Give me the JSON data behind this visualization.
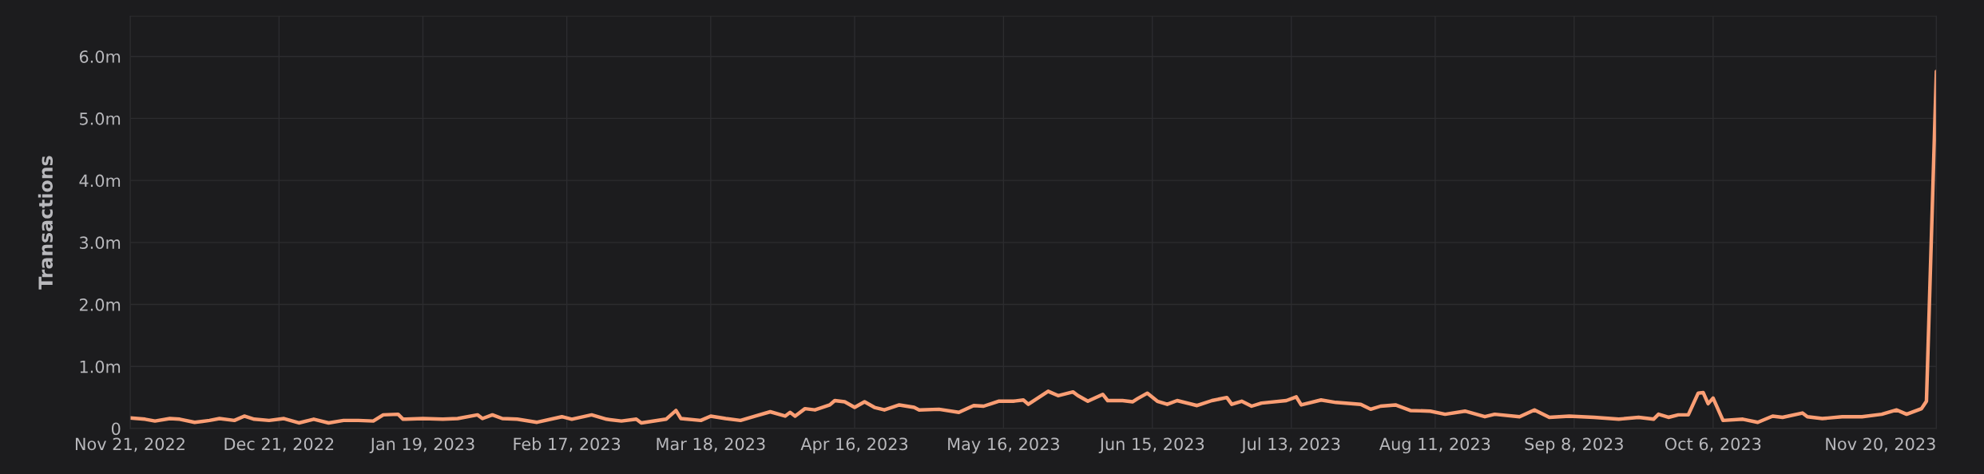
{
  "chart_data": {
    "type": "line",
    "ylabel": "Transactions",
    "xlim": [
      "2022-11-21",
      "2023-11-20"
    ],
    "xticks": [
      {
        "value": "2022-11-21",
        "label": "Nov 21, 2022"
      },
      {
        "value": "2022-12-21",
        "label": "Dec 21, 2022"
      },
      {
        "value": "2023-01-19",
        "label": "Jan 19, 2023"
      },
      {
        "value": "2023-02-17",
        "label": "Feb 17, 2023"
      },
      {
        "value": "2023-03-18",
        "label": "Mar 18, 2023"
      },
      {
        "value": "2023-04-16",
        "label": "Apr 16, 2023"
      },
      {
        "value": "2023-05-16",
        "label": "May 16, 2023"
      },
      {
        "value": "2023-06-15",
        "label": "Jun 15, 2023"
      },
      {
        "value": "2023-07-13",
        "label": "Jul 13, 2023"
      },
      {
        "value": "2023-08-11",
        "label": "Aug 11, 2023"
      },
      {
        "value": "2023-09-08",
        "label": "Sep 8, 2023"
      },
      {
        "value": "2023-10-06",
        "label": "Oct 6, 2023"
      },
      {
        "value": "2023-11-20",
        "label": "Nov 20, 2023"
      }
    ],
    "ylim": [
      0,
      6.65
    ],
    "yticks": [
      0,
      {
        "value": 1,
        "label": "1.0m"
      },
      {
        "value": 2,
        "label": "2.0m"
      },
      {
        "value": 3,
        "label": "3.0m"
      },
      {
        "value": 4,
        "label": "4.0m"
      },
      {
        "value": 5,
        "label": "5.0m"
      },
      {
        "value": 6,
        "label": "6.0m"
      }
    ],
    "grid": true,
    "marker": "none",
    "line_style": "solid",
    "x": [
      "2022-11-21",
      "2022-11-24",
      "2022-11-26",
      "2022-11-29",
      "2022-12-01",
      "2022-12-04",
      "2022-12-07",
      "2022-12-09",
      "2022-12-12",
      "2022-12-14",
      "2022-12-16",
      "2022-12-19",
      "2022-12-22",
      "2022-12-25",
      "2022-12-28",
      "2022-12-31",
      "2023-01-03",
      "2023-01-06",
      "2023-01-09",
      "2023-01-11",
      "2023-01-14",
      "2023-01-15",
      "2023-01-19",
      "2023-01-23",
      "2023-01-26",
      "2023-01-30",
      "2023-01-31",
      "2023-02-02",
      "2023-02-04",
      "2023-02-07",
      "2023-02-11",
      "2023-02-16",
      "2023-02-18",
      "2023-02-22",
      "2023-02-25",
      "2023-02-28",
      "2023-03-03",
      "2023-03-04",
      "2023-03-09",
      "2023-03-11",
      "2023-03-12",
      "2023-03-16",
      "2023-03-18",
      "2023-03-21",
      "2023-03-24",
      "2023-03-27",
      "2023-03-30",
      "2023-04-02",
      "2023-04-03",
      "2023-04-04",
      "2023-04-06",
      "2023-04-08",
      "2023-04-11",
      "2023-04-12",
      "2023-04-14",
      "2023-04-16",
      "2023-04-18",
      "2023-04-20",
      "2023-04-22",
      "2023-04-25",
      "2023-04-28",
      "2023-04-29",
      "2023-05-03",
      "2023-05-07",
      "2023-05-10",
      "2023-05-12",
      "2023-05-15",
      "2023-05-18",
      "2023-05-20",
      "2023-05-21",
      "2023-05-25",
      "2023-05-27",
      "2023-05-30",
      "2023-05-31",
      "2023-06-02",
      "2023-06-05",
      "2023-06-06",
      "2023-06-09",
      "2023-06-11",
      "2023-06-12",
      "2023-06-14",
      "2023-06-16",
      "2023-06-18",
      "2023-06-20",
      "2023-06-24",
      "2023-06-27",
      "2023-06-30",
      "2023-07-01",
      "2023-07-03",
      "2023-07-05",
      "2023-07-07",
      "2023-07-12",
      "2023-07-14",
      "2023-07-15",
      "2023-07-19",
      "2023-07-22",
      "2023-07-27",
      "2023-07-29",
      "2023-07-31",
      "2023-08-03",
      "2023-08-06",
      "2023-08-10",
      "2023-08-13",
      "2023-08-17",
      "2023-08-21",
      "2023-08-23",
      "2023-08-28",
      "2023-08-31",
      "2023-09-03",
      "2023-09-07",
      "2023-09-12",
      "2023-09-17",
      "2023-09-21",
      "2023-09-24",
      "2023-09-25",
      "2023-09-27",
      "2023-09-29",
      "2023-10-01",
      "2023-10-03",
      "2023-10-04",
      "2023-10-05",
      "2023-10-06",
      "2023-10-08",
      "2023-10-12",
      "2023-10-15",
      "2023-10-18",
      "2023-10-20",
      "2023-10-24",
      "2023-10-25",
      "2023-10-28",
      "2023-11-01",
      "2023-11-05",
      "2023-11-09",
      "2023-11-12",
      "2023-11-14",
      "2023-11-17",
      "2023-11-18",
      "2023-11-20"
    ],
    "series": [
      {
        "color": "#fa9e74",
        "values": [
          0.17,
          0.15,
          0.12,
          0.16,
          0.15,
          0.1,
          0.13,
          0.16,
          0.13,
          0.2,
          0.15,
          0.13,
          0.16,
          0.09,
          0.15,
          0.09,
          0.13,
          0.13,
          0.12,
          0.22,
          0.23,
          0.15,
          0.16,
          0.15,
          0.16,
          0.22,
          0.16,
          0.22,
          0.16,
          0.15,
          0.1,
          0.19,
          0.15,
          0.22,
          0.15,
          0.12,
          0.15,
          0.09,
          0.15,
          0.29,
          0.16,
          0.13,
          0.2,
          0.16,
          0.13,
          0.2,
          0.27,
          0.2,
          0.26,
          0.2,
          0.32,
          0.3,
          0.38,
          0.45,
          0.43,
          0.34,
          0.43,
          0.34,
          0.3,
          0.38,
          0.34,
          0.3,
          0.31,
          0.26,
          0.37,
          0.36,
          0.44,
          0.44,
          0.46,
          0.39,
          0.6,
          0.53,
          0.59,
          0.53,
          0.44,
          0.55,
          0.45,
          0.45,
          0.43,
          0.48,
          0.57,
          0.44,
          0.39,
          0.45,
          0.37,
          0.45,
          0.5,
          0.39,
          0.44,
          0.36,
          0.41,
          0.45,
          0.51,
          0.38,
          0.46,
          0.42,
          0.39,
          0.31,
          0.36,
          0.38,
          0.29,
          0.28,
          0.23,
          0.28,
          0.19,
          0.23,
          0.19,
          0.3,
          0.18,
          0.2,
          0.18,
          0.15,
          0.18,
          0.15,
          0.23,
          0.18,
          0.22,
          0.22,
          0.57,
          0.58,
          0.4,
          0.49,
          0.13,
          0.15,
          0.1,
          0.2,
          0.18,
          0.25,
          0.19,
          0.16,
          0.19,
          0.19,
          0.23,
          0.3,
          0.23,
          0.32,
          0.44,
          5.76
        ]
      }
    ]
  }
}
